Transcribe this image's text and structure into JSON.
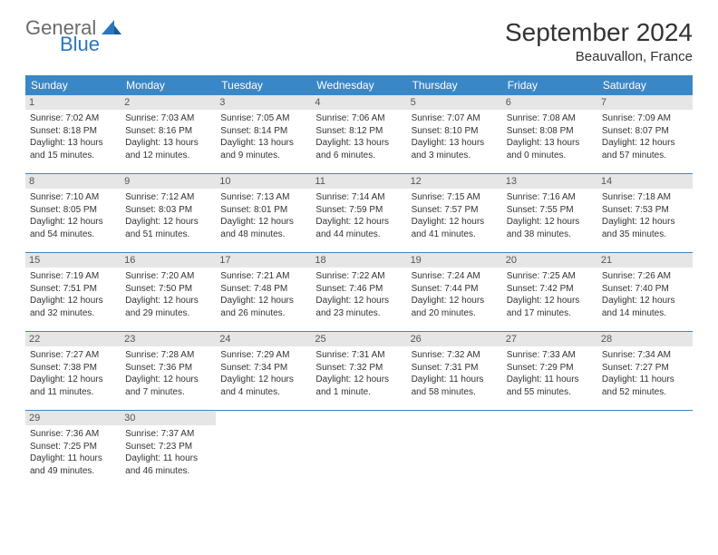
{
  "brand": {
    "name1": "General",
    "name2": "Blue"
  },
  "title": "September 2024",
  "location": "Beauvallon, France",
  "colors": {
    "header_bg": "#3a87c8",
    "header_text": "#ffffff",
    "daynum_bg": "#e6e6e6",
    "row_border": "#3a87c8",
    "brand_gray": "#6b6b6b",
    "brand_blue": "#2a77bd"
  },
  "weekdays": [
    "Sunday",
    "Monday",
    "Tuesday",
    "Wednesday",
    "Thursday",
    "Friday",
    "Saturday"
  ],
  "weeks": [
    [
      {
        "day": "1",
        "sunrise": "Sunrise: 7:02 AM",
        "sunset": "Sunset: 8:18 PM",
        "daylight1": "Daylight: 13 hours",
        "daylight2": "and 15 minutes."
      },
      {
        "day": "2",
        "sunrise": "Sunrise: 7:03 AM",
        "sunset": "Sunset: 8:16 PM",
        "daylight1": "Daylight: 13 hours",
        "daylight2": "and 12 minutes."
      },
      {
        "day": "3",
        "sunrise": "Sunrise: 7:05 AM",
        "sunset": "Sunset: 8:14 PM",
        "daylight1": "Daylight: 13 hours",
        "daylight2": "and 9 minutes."
      },
      {
        "day": "4",
        "sunrise": "Sunrise: 7:06 AM",
        "sunset": "Sunset: 8:12 PM",
        "daylight1": "Daylight: 13 hours",
        "daylight2": "and 6 minutes."
      },
      {
        "day": "5",
        "sunrise": "Sunrise: 7:07 AM",
        "sunset": "Sunset: 8:10 PM",
        "daylight1": "Daylight: 13 hours",
        "daylight2": "and 3 minutes."
      },
      {
        "day": "6",
        "sunrise": "Sunrise: 7:08 AM",
        "sunset": "Sunset: 8:08 PM",
        "daylight1": "Daylight: 13 hours",
        "daylight2": "and 0 minutes."
      },
      {
        "day": "7",
        "sunrise": "Sunrise: 7:09 AM",
        "sunset": "Sunset: 8:07 PM",
        "daylight1": "Daylight: 12 hours",
        "daylight2": "and 57 minutes."
      }
    ],
    [
      {
        "day": "8",
        "sunrise": "Sunrise: 7:10 AM",
        "sunset": "Sunset: 8:05 PM",
        "daylight1": "Daylight: 12 hours",
        "daylight2": "and 54 minutes."
      },
      {
        "day": "9",
        "sunrise": "Sunrise: 7:12 AM",
        "sunset": "Sunset: 8:03 PM",
        "daylight1": "Daylight: 12 hours",
        "daylight2": "and 51 minutes."
      },
      {
        "day": "10",
        "sunrise": "Sunrise: 7:13 AM",
        "sunset": "Sunset: 8:01 PM",
        "daylight1": "Daylight: 12 hours",
        "daylight2": "and 48 minutes."
      },
      {
        "day": "11",
        "sunrise": "Sunrise: 7:14 AM",
        "sunset": "Sunset: 7:59 PM",
        "daylight1": "Daylight: 12 hours",
        "daylight2": "and 44 minutes."
      },
      {
        "day": "12",
        "sunrise": "Sunrise: 7:15 AM",
        "sunset": "Sunset: 7:57 PM",
        "daylight1": "Daylight: 12 hours",
        "daylight2": "and 41 minutes."
      },
      {
        "day": "13",
        "sunrise": "Sunrise: 7:16 AM",
        "sunset": "Sunset: 7:55 PM",
        "daylight1": "Daylight: 12 hours",
        "daylight2": "and 38 minutes."
      },
      {
        "day": "14",
        "sunrise": "Sunrise: 7:18 AM",
        "sunset": "Sunset: 7:53 PM",
        "daylight1": "Daylight: 12 hours",
        "daylight2": "and 35 minutes."
      }
    ],
    [
      {
        "day": "15",
        "sunrise": "Sunrise: 7:19 AM",
        "sunset": "Sunset: 7:51 PM",
        "daylight1": "Daylight: 12 hours",
        "daylight2": "and 32 minutes."
      },
      {
        "day": "16",
        "sunrise": "Sunrise: 7:20 AM",
        "sunset": "Sunset: 7:50 PM",
        "daylight1": "Daylight: 12 hours",
        "daylight2": "and 29 minutes."
      },
      {
        "day": "17",
        "sunrise": "Sunrise: 7:21 AM",
        "sunset": "Sunset: 7:48 PM",
        "daylight1": "Daylight: 12 hours",
        "daylight2": "and 26 minutes."
      },
      {
        "day": "18",
        "sunrise": "Sunrise: 7:22 AM",
        "sunset": "Sunset: 7:46 PM",
        "daylight1": "Daylight: 12 hours",
        "daylight2": "and 23 minutes."
      },
      {
        "day": "19",
        "sunrise": "Sunrise: 7:24 AM",
        "sunset": "Sunset: 7:44 PM",
        "daylight1": "Daylight: 12 hours",
        "daylight2": "and 20 minutes."
      },
      {
        "day": "20",
        "sunrise": "Sunrise: 7:25 AM",
        "sunset": "Sunset: 7:42 PM",
        "daylight1": "Daylight: 12 hours",
        "daylight2": "and 17 minutes."
      },
      {
        "day": "21",
        "sunrise": "Sunrise: 7:26 AM",
        "sunset": "Sunset: 7:40 PM",
        "daylight1": "Daylight: 12 hours",
        "daylight2": "and 14 minutes."
      }
    ],
    [
      {
        "day": "22",
        "sunrise": "Sunrise: 7:27 AM",
        "sunset": "Sunset: 7:38 PM",
        "daylight1": "Daylight: 12 hours",
        "daylight2": "and 11 minutes."
      },
      {
        "day": "23",
        "sunrise": "Sunrise: 7:28 AM",
        "sunset": "Sunset: 7:36 PM",
        "daylight1": "Daylight: 12 hours",
        "daylight2": "and 7 minutes."
      },
      {
        "day": "24",
        "sunrise": "Sunrise: 7:29 AM",
        "sunset": "Sunset: 7:34 PM",
        "daylight1": "Daylight: 12 hours",
        "daylight2": "and 4 minutes."
      },
      {
        "day": "25",
        "sunrise": "Sunrise: 7:31 AM",
        "sunset": "Sunset: 7:32 PM",
        "daylight1": "Daylight: 12 hours",
        "daylight2": "and 1 minute."
      },
      {
        "day": "26",
        "sunrise": "Sunrise: 7:32 AM",
        "sunset": "Sunset: 7:31 PM",
        "daylight1": "Daylight: 11 hours",
        "daylight2": "and 58 minutes."
      },
      {
        "day": "27",
        "sunrise": "Sunrise: 7:33 AM",
        "sunset": "Sunset: 7:29 PM",
        "daylight1": "Daylight: 11 hours",
        "daylight2": "and 55 minutes."
      },
      {
        "day": "28",
        "sunrise": "Sunrise: 7:34 AM",
        "sunset": "Sunset: 7:27 PM",
        "daylight1": "Daylight: 11 hours",
        "daylight2": "and 52 minutes."
      }
    ],
    [
      {
        "day": "29",
        "sunrise": "Sunrise: 7:36 AM",
        "sunset": "Sunset: 7:25 PM",
        "daylight1": "Daylight: 11 hours",
        "daylight2": "and 49 minutes."
      },
      {
        "day": "30",
        "sunrise": "Sunrise: 7:37 AM",
        "sunset": "Sunset: 7:23 PM",
        "daylight1": "Daylight: 11 hours",
        "daylight2": "and 46 minutes."
      },
      null,
      null,
      null,
      null,
      null
    ]
  ]
}
